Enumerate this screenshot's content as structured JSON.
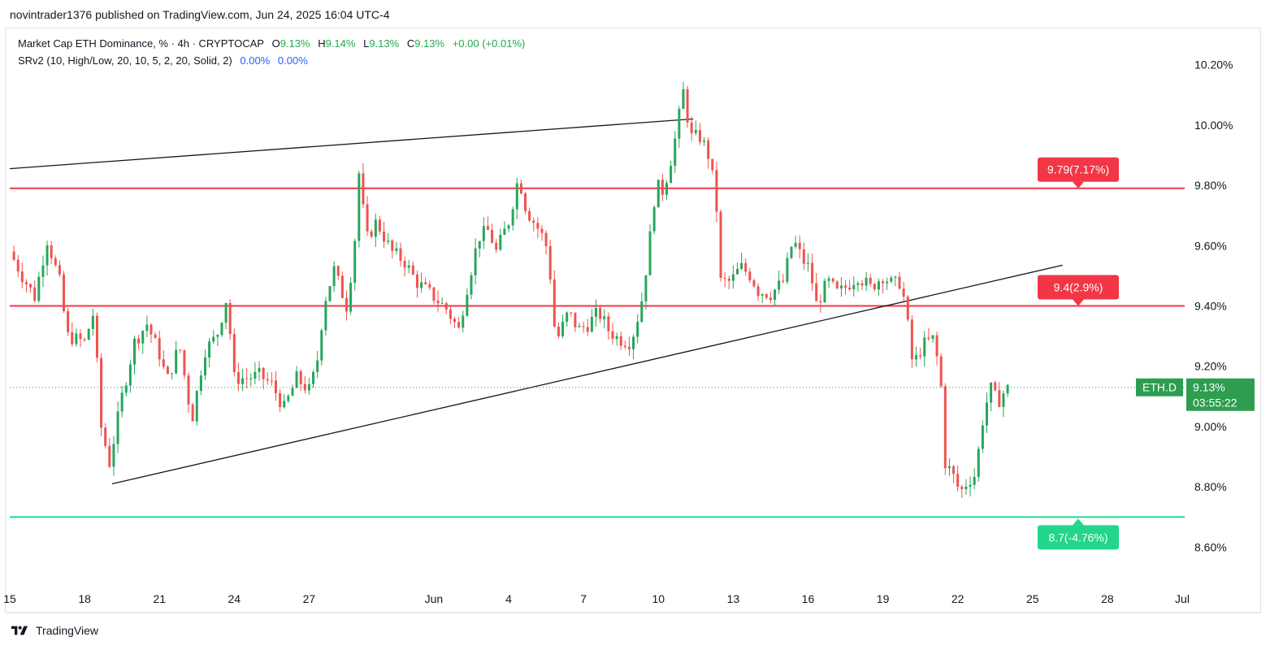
{
  "publisher": "novintrader1376 published on TradingView.com, Jun 24, 2025 16:04 UTC-4",
  "legend": {
    "symbol": "Market Cap ETH Dominance, % · 4h · CRYPTOCAP",
    "o_label": "O",
    "o_value": "9.13%",
    "h_label": "H",
    "h_value": "9.14%",
    "l_label": "L",
    "l_value": "9.13%",
    "c_label": "C",
    "c_value": "9.13%",
    "change": "+0.00 (+0.01%)",
    "indicator": "SRv2 (10, High/Low, 20, 10, 5, 2, 20, Solid, 2)",
    "ind_v1": "0.00%",
    "ind_v2": "0.00%"
  },
  "brand": "TradingView",
  "colors": {
    "up": "#26a65b",
    "down": "#ef5350",
    "resistance": "#f23645",
    "support": "#22d68a",
    "trendline": "#131722",
    "last_price": "#2e9d4f"
  },
  "chart_data": {
    "type": "candlestick",
    "title": "Market Cap ETH Dominance",
    "timeframe": "4h",
    "y_unit": "%",
    "ylim": [
      8.48,
      10.32
    ],
    "y_ticks": [
      "10.20%",
      "10.00%",
      "9.80%",
      "9.60%",
      "9.40%",
      "9.20%",
      "9.00%",
      "8.80%",
      "8.60%"
    ],
    "y_tick_values": [
      10.2,
      10.0,
      9.8,
      9.6,
      9.4,
      9.2,
      9.0,
      8.8,
      8.6
    ],
    "x_ticks": [
      "15",
      "18",
      "21",
      "24",
      "27",
      "Jun",
      "4",
      "7",
      "10",
      "13",
      "16",
      "19",
      "22",
      "25",
      "28",
      "Jul"
    ],
    "x_tick_days": [
      15,
      18,
      21,
      24,
      27,
      32,
      35,
      38,
      41,
      44,
      47,
      50,
      53,
      56,
      59,
      62
    ],
    "x_day_range": [
      15,
      62
    ],
    "levels": [
      {
        "value": 9.79,
        "label": "9.79(7.17%)",
        "kind": "resistance"
      },
      {
        "value": 9.4,
        "label": "9.4(2.9%)",
        "kind": "resistance"
      },
      {
        "value": 8.7,
        "label": "8.7(-4.76%)",
        "kind": "support"
      }
    ],
    "trendlines": [
      {
        "from": [
          15.0,
          9.855
        ],
        "to": [
          42.4,
          10.02
        ]
      },
      {
        "from": [
          19.1,
          8.81
        ],
        "to": [
          57.2,
          9.535
        ]
      }
    ],
    "last_price": {
      "symbol": "ETH.D",
      "value": "9.13%",
      "countdown": "03:55:22",
      "y": 9.13
    },
    "ohlc_anchors": [
      [
        15.0,
        9.58
      ],
      [
        15.5,
        9.5
      ],
      [
        16.0,
        9.43
      ],
      [
        16.5,
        9.62
      ],
      [
        17.0,
        9.48
      ],
      [
        17.3,
        9.3
      ],
      [
        18.0,
        9.28
      ],
      [
        18.4,
        9.39
      ],
      [
        18.6,
        9.02
      ],
      [
        19.0,
        8.88
      ],
      [
        19.5,
        9.1
      ],
      [
        20.0,
        9.28
      ],
      [
        20.5,
        9.34
      ],
      [
        21.0,
        9.24
      ],
      [
        21.3,
        9.15
      ],
      [
        21.8,
        9.27
      ],
      [
        22.3,
        9.02
      ],
      [
        22.8,
        9.25
      ],
      [
        23.3,
        9.3
      ],
      [
        23.7,
        9.43
      ],
      [
        24.0,
        9.16
      ],
      [
        24.5,
        9.16
      ],
      [
        25.0,
        9.17
      ],
      [
        25.5,
        9.14
      ],
      [
        26.0,
        9.06
      ],
      [
        26.5,
        9.16
      ],
      [
        27.0,
        9.12
      ],
      [
        27.3,
        9.2
      ],
      [
        27.6,
        9.41
      ],
      [
        28.0,
        9.52
      ],
      [
        28.5,
        9.4
      ],
      [
        28.8,
        9.58
      ],
      [
        29.0,
        9.84
      ],
      [
        29.3,
        9.62
      ],
      [
        29.7,
        9.68
      ],
      [
        30.3,
        9.58
      ],
      [
        30.8,
        9.55
      ],
      [
        31.3,
        9.48
      ],
      [
        32.0,
        9.43
      ],
      [
        32.5,
        9.39
      ],
      [
        33.0,
        9.32
      ],
      [
        33.3,
        9.45
      ],
      [
        33.8,
        9.63
      ],
      [
        34.2,
        9.65
      ],
      [
        34.5,
        9.58
      ],
      [
        35.0,
        9.68
      ],
      [
        35.4,
        9.83
      ],
      [
        35.7,
        9.72
      ],
      [
        36.3,
        9.64
      ],
      [
        36.6,
        9.58
      ],
      [
        36.8,
        9.34
      ],
      [
        37.0,
        9.3
      ],
      [
        37.4,
        9.38
      ],
      [
        37.8,
        9.32
      ],
      [
        38.2,
        9.34
      ],
      [
        38.6,
        9.38
      ],
      [
        39.0,
        9.32
      ],
      [
        39.4,
        9.29
      ],
      [
        39.9,
        9.28
      ],
      [
        40.3,
        9.4
      ],
      [
        40.6,
        9.58
      ],
      [
        40.9,
        9.8
      ],
      [
        41.2,
        9.78
      ],
      [
        41.6,
        9.92
      ],
      [
        42.0,
        10.11
      ],
      [
        42.3,
        9.96
      ],
      [
        42.7,
        9.96
      ],
      [
        43.0,
        9.9
      ],
      [
        43.3,
        9.77
      ],
      [
        43.5,
        9.48
      ],
      [
        43.9,
        9.48
      ],
      [
        44.3,
        9.53
      ],
      [
        44.7,
        9.5
      ],
      [
        45.0,
        9.45
      ],
      [
        45.5,
        9.44
      ],
      [
        46.0,
        9.48
      ],
      [
        46.4,
        9.62
      ],
      [
        46.8,
        9.55
      ],
      [
        47.1,
        9.52
      ],
      [
        47.3,
        9.4
      ],
      [
        47.8,
        9.48
      ],
      [
        48.2,
        9.44
      ],
      [
        48.6,
        9.47
      ],
      [
        49.0,
        9.5
      ],
      [
        49.5,
        9.46
      ],
      [
        50.0,
        9.5
      ],
      [
        50.4,
        9.47
      ],
      [
        50.7,
        9.48
      ],
      [
        50.9,
        9.4
      ],
      [
        51.2,
        9.2
      ],
      [
        51.6,
        9.27
      ],
      [
        52.0,
        9.29
      ],
      [
        52.3,
        9.18
      ],
      [
        52.5,
        8.88
      ],
      [
        52.8,
        8.84
      ],
      [
        53.1,
        8.78
      ],
      [
        53.4,
        8.82
      ],
      [
        53.7,
        8.84
      ],
      [
        54.0,
        9.02
      ],
      [
        54.3,
        9.13
      ],
      [
        54.6,
        9.08
      ],
      [
        54.9,
        9.12
      ],
      [
        55.1,
        9.13
      ]
    ]
  }
}
